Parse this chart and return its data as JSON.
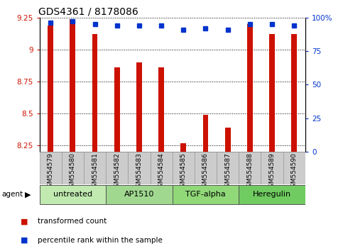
{
  "title": "GDS4361 / 8178086",
  "samples": [
    "GSM554579",
    "GSM554580",
    "GSM554581",
    "GSM554582",
    "GSM554583",
    "GSM554584",
    "GSM554585",
    "GSM554586",
    "GSM554587",
    "GSM554588",
    "GSM554589",
    "GSM554590"
  ],
  "red_values": [
    9.19,
    9.24,
    9.12,
    8.86,
    8.9,
    8.86,
    8.27,
    8.49,
    8.39,
    9.2,
    9.12,
    9.12
  ],
  "blue_values": [
    96,
    97,
    95,
    94,
    94,
    94,
    91,
    92,
    91,
    95,
    95,
    94
  ],
  "ylim_left": [
    8.2,
    9.25
  ],
  "ylim_right": [
    0,
    100
  ],
  "yticks_left": [
    8.25,
    8.5,
    8.75,
    9.0,
    9.25
  ],
  "ytick_labels_left": [
    "8.25",
    "8.5",
    "8.75",
    "9",
    "9.25"
  ],
  "yticks_right": [
    0,
    25,
    50,
    75,
    100
  ],
  "ytick_labels_right": [
    "0",
    "25",
    "50",
    "75",
    "100%"
  ],
  "bar_color": "#cc1100",
  "dot_color": "#0033cc",
  "agent_groups": [
    {
      "label": "untreated",
      "indices": [
        0,
        1,
        2
      ]
    },
    {
      "label": "AP1510",
      "indices": [
        3,
        4,
        5
      ]
    },
    {
      "label": "TGF-alpha",
      "indices": [
        6,
        7,
        8
      ]
    },
    {
      "label": "Heregulin",
      "indices": [
        9,
        10,
        11
      ]
    }
  ],
  "group_colors": [
    "#c0eab0",
    "#a0d890",
    "#90d878",
    "#70cc60"
  ],
  "legend_items": [
    {
      "label": "transformed count",
      "color": "#cc1100"
    },
    {
      "label": "percentile rank within the sample",
      "color": "#0033cc"
    }
  ],
  "background_color": "#ffffff",
  "tick_area_color": "#cccccc",
  "bar_width": 0.25,
  "title_fontsize": 10,
  "label_fontsize": 6.5,
  "agent_fontsize": 8,
  "legend_fontsize": 7.5
}
